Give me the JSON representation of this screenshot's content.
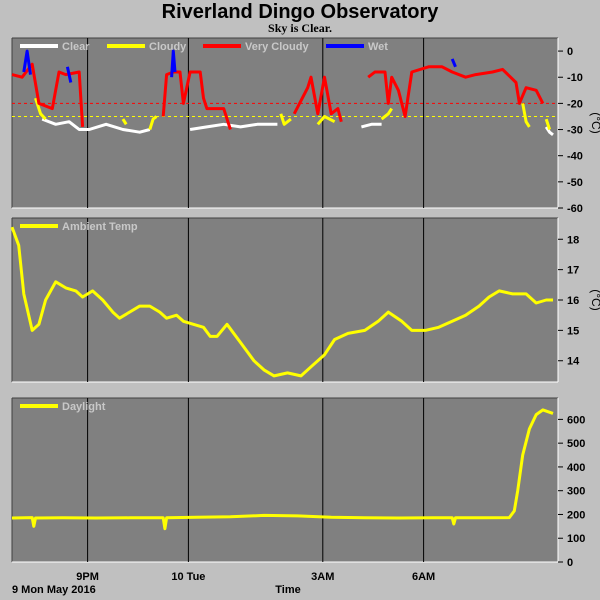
{
  "title": "Riverland Dingo Observatory",
  "subtitle": "Sky is Clear.",
  "x_axis": {
    "label": "Time",
    "date_label": "9 Mon May 2016",
    "ticks": [
      "9PM",
      "10 Tue",
      "3AM",
      "6AM"
    ]
  },
  "colors": {
    "background": "#c0c0c0",
    "plot_background": "#808080",
    "clear": "#ffffff",
    "cloudy": "#ffff00",
    "very_cloudy": "#ff0000",
    "wet": "#0000ff",
    "ambient": "#ffff00",
    "daylight": "#ffff00"
  },
  "chart_data": [
    {
      "type": "line",
      "ylabel": "(°C)",
      "ylim": [
        -60,
        5
      ],
      "ticks": [
        0,
        -10,
        -20,
        -30,
        -40,
        -50,
        -60
      ],
      "thresholds": [
        {
          "value": -20,
          "color": "#ff0000"
        },
        {
          "value": -25,
          "color": "#ffff00"
        }
      ],
      "series": [
        {
          "name": "Clear",
          "color": "#ffffff",
          "segments": [
            [
              [
                0.9,
                -26
              ],
              [
                1.3,
                -28
              ],
              [
                1.7,
                -27
              ],
              [
                2.0,
                -30
              ],
              [
                2.3,
                -30
              ],
              [
                2.8,
                -28
              ],
              [
                3.3,
                -30
              ],
              [
                3.8,
                -31
              ],
              [
                4.1,
                -30
              ]
            ],
            [
              [
                5.3,
                -30
              ],
              [
                5.8,
                -29
              ],
              [
                6.3,
                -28
              ],
              [
                6.8,
                -29
              ],
              [
                7.3,
                -28
              ],
              [
                7.9,
                -28
              ]
            ],
            [
              [
                10.4,
                -29
              ],
              [
                10.7,
                -28
              ],
              [
                11.0,
                -28
              ]
            ],
            [
              [
                15.9,
                -29
              ],
              [
                16.0,
                -31
              ],
              [
                16.1,
                -32
              ]
            ]
          ]
        },
        {
          "name": "Cloudy",
          "color": "#ffff00",
          "segments": [
            [
              [
                0.7,
                -18
              ],
              [
                0.85,
                -24
              ],
              [
                1.0,
                -26
              ]
            ],
            [
              [
                3.3,
                -26
              ],
              [
                3.4,
                -28
              ]
            ],
            [
              [
                4.1,
                -30
              ],
              [
                4.2,
                -26
              ],
              [
                4.3,
                -25
              ]
            ],
            [
              [
                8.0,
                -24
              ],
              [
                8.1,
                -28
              ],
              [
                8.3,
                -26
              ]
            ],
            [
              [
                9.1,
                -28
              ],
              [
                9.3,
                -25
              ],
              [
                9.6,
                -27
              ]
            ],
            [
              [
                11.0,
                -26
              ],
              [
                11.2,
                -24
              ],
              [
                11.3,
                -22
              ]
            ],
            [
              [
                15.2,
                -20
              ],
              [
                15.3,
                -27
              ],
              [
                15.4,
                -29
              ]
            ],
            [
              [
                15.9,
                -26
              ],
              [
                16.0,
                -30
              ]
            ]
          ]
        },
        {
          "name": "Very Cloudy",
          "color": "#ff0000",
          "segments": [
            [
              [
                0.0,
                -9
              ],
              [
                0.3,
                -10
              ],
              [
                0.6,
                -5
              ],
              [
                0.8,
                -20
              ],
              [
                1.2,
                -22
              ],
              [
                1.4,
                -8
              ],
              [
                1.6,
                -9
              ],
              [
                2.0,
                -8
              ],
              [
                2.1,
                -29
              ]
            ],
            [
              [
                4.5,
                -25
              ],
              [
                4.6,
                -9
              ],
              [
                4.8,
                -8
              ],
              [
                5.0,
                -8
              ],
              [
                5.1,
                -20
              ],
              [
                5.3,
                -8
              ],
              [
                5.6,
                -8
              ],
              [
                5.7,
                -18
              ],
              [
                5.8,
                -22
              ],
              [
                6.3,
                -22
              ],
              [
                6.5,
                -30
              ]
            ],
            [
              [
                8.4,
                -24
              ],
              [
                8.8,
                -14
              ],
              [
                8.9,
                -10
              ],
              [
                9.1,
                -24
              ],
              [
                9.3,
                -10
              ],
              [
                9.5,
                -24
              ],
              [
                9.7,
                -22
              ],
              [
                9.8,
                -27
              ]
            ],
            [
              [
                10.6,
                -10
              ],
              [
                10.8,
                -8
              ],
              [
                11.1,
                -8
              ],
              [
                11.2,
                -20
              ],
              [
                11.3,
                -10
              ],
              [
                11.5,
                -15
              ],
              [
                11.7,
                -25
              ],
              [
                11.9,
                -8
              ],
              [
                12.4,
                -6
              ],
              [
                12.8,
                -6
              ],
              [
                13.1,
                -8
              ],
              [
                13.5,
                -10
              ],
              [
                13.8,
                -9
              ],
              [
                14.3,
                -8
              ],
              [
                14.6,
                -7
              ],
              [
                15.0,
                -12
              ],
              [
                15.1,
                -20
              ],
              [
                15.3,
                -14
              ],
              [
                15.6,
                -15
              ],
              [
                15.8,
                -20
              ]
            ]
          ]
        },
        {
          "name": "Wet",
          "color": "#0000ff",
          "segments": [
            [
              [
                0.35,
                -8
              ],
              [
                0.45,
                0
              ],
              [
                0.55,
                -9
              ]
            ],
            [
              [
                1.65,
                -6
              ],
              [
                1.75,
                -12
              ]
            ],
            [
              [
                4.75,
                -10
              ],
              [
                4.8,
                0
              ],
              [
                4.85,
                -8
              ]
            ],
            [
              [
                13.1,
                -3
              ],
              [
                13.2,
                -6
              ]
            ]
          ]
        }
      ]
    },
    {
      "type": "line",
      "ylabel": "(°C)",
      "ylim": [
        13.3,
        18.7
      ],
      "ticks": [
        14,
        15,
        16,
        17,
        18
      ],
      "series": [
        {
          "name": "Ambient Temp",
          "color": "#ffff00",
          "points": [
            [
              0.0,
              18.4
            ],
            [
              0.2,
              17.8
            ],
            [
              0.35,
              16.2
            ],
            [
              0.6,
              15.0
            ],
            [
              0.8,
              15.2
            ],
            [
              1.0,
              16.0
            ],
            [
              1.3,
              16.6
            ],
            [
              1.6,
              16.4
            ],
            [
              1.9,
              16.3
            ],
            [
              2.1,
              16.1
            ],
            [
              2.4,
              16.3
            ],
            [
              2.7,
              16.0
            ],
            [
              3.0,
              15.6
            ],
            [
              3.2,
              15.4
            ],
            [
              3.5,
              15.6
            ],
            [
              3.8,
              15.8
            ],
            [
              4.1,
              15.8
            ],
            [
              4.4,
              15.6
            ],
            [
              4.6,
              15.4
            ],
            [
              4.9,
              15.5
            ],
            [
              5.1,
              15.3
            ],
            [
              5.4,
              15.2
            ],
            [
              5.7,
              15.1
            ],
            [
              5.9,
              14.8
            ],
            [
              6.1,
              14.8
            ],
            [
              6.4,
              15.2
            ],
            [
              6.8,
              14.6
            ],
            [
              7.2,
              14.0
            ],
            [
              7.5,
              13.7
            ],
            [
              7.8,
              13.5
            ],
            [
              8.2,
              13.6
            ],
            [
              8.6,
              13.5
            ],
            [
              8.9,
              13.8
            ],
            [
              9.3,
              14.2
            ],
            [
              9.6,
              14.7
            ],
            [
              10.0,
              14.9
            ],
            [
              10.5,
              15.0
            ],
            [
              10.9,
              15.3
            ],
            [
              11.2,
              15.6
            ],
            [
              11.6,
              15.3
            ],
            [
              11.9,
              15.0
            ],
            [
              12.3,
              15.0
            ],
            [
              12.7,
              15.1
            ],
            [
              13.1,
              15.3
            ],
            [
              13.5,
              15.5
            ],
            [
              13.9,
              15.8
            ],
            [
              14.2,
              16.1
            ],
            [
              14.5,
              16.3
            ],
            [
              14.9,
              16.2
            ],
            [
              15.3,
              16.2
            ],
            [
              15.6,
              15.9
            ],
            [
              15.9,
              16.0
            ],
            [
              16.1,
              16.0
            ]
          ]
        }
      ]
    },
    {
      "type": "line",
      "ylim": [
        0,
        690
      ],
      "ticks": [
        0,
        100,
        200,
        300,
        400,
        500,
        600
      ],
      "series": [
        {
          "name": "Daylight",
          "color": "#ffff00",
          "points": [
            [
              0.0,
              185
            ],
            [
              0.6,
              187
            ],
            [
              0.65,
              150
            ],
            [
              0.7,
              185
            ],
            [
              1.5,
              186
            ],
            [
              2.5,
              185
            ],
            [
              3.5,
              186
            ],
            [
              4.5,
              186
            ],
            [
              4.55,
              140
            ],
            [
              4.6,
              186
            ],
            [
              5.5,
              188
            ],
            [
              6.5,
              190
            ],
            [
              7.5,
              196
            ],
            [
              8.5,
              194
            ],
            [
              9.5,
              188
            ],
            [
              10.5,
              186
            ],
            [
              11.5,
              185
            ],
            [
              12.5,
              186
            ],
            [
              13.1,
              186
            ],
            [
              13.15,
              160
            ],
            [
              13.2,
              186
            ],
            [
              14.0,
              186
            ],
            [
              14.8,
              187
            ],
            [
              14.95,
              215
            ],
            [
              15.05,
              300
            ],
            [
              15.2,
              450
            ],
            [
              15.4,
              560
            ],
            [
              15.6,
              620
            ],
            [
              15.8,
              640
            ],
            [
              16.1,
              625
            ]
          ]
        }
      ]
    }
  ]
}
